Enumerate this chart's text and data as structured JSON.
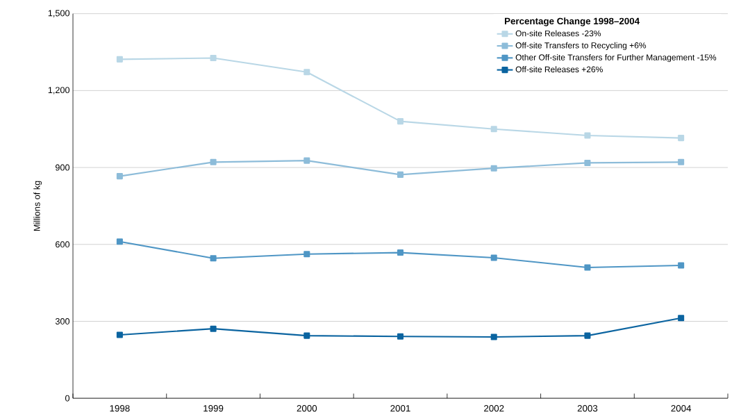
{
  "chart_data": {
    "type": "line",
    "ylabel": "Millions of kg",
    "legend_title": "Percentage Change 1998–2004",
    "categories": [
      "1998",
      "1999",
      "2000",
      "2001",
      "2002",
      "2003",
      "2004"
    ],
    "series": [
      {
        "name": "On-site Releases -23%",
        "color": "#b9d7e6",
        "values": [
          1322,
          1327,
          1272,
          1080,
          1050,
          1025,
          1015
        ]
      },
      {
        "name": "Off-site Transfers to Recycling +6%",
        "color": "#8dbcd9",
        "values": [
          866,
          921,
          927,
          872,
          897,
          918,
          921
        ]
      },
      {
        "name": "Other Off-site Transfers for Further Management -15%",
        "color": "#4f96c5",
        "values": [
          611,
          546,
          562,
          568,
          548,
          510,
          518
        ]
      },
      {
        "name": "Off-site Releases +26%",
        "color": "#0b64a0",
        "values": [
          247,
          271,
          244,
          241,
          239,
          244,
          313
        ]
      }
    ],
    "ylim": [
      0,
      1500
    ],
    "yticks": [
      {
        "value": 0,
        "label": "0"
      },
      {
        "value": 300,
        "label": "300"
      },
      {
        "value": 600,
        "label": "600"
      },
      {
        "value": 900,
        "label": "900"
      },
      {
        "value": 1200,
        "label": "1,200"
      },
      {
        "value": 1500,
        "label": "1,500"
      }
    ],
    "grid": "y",
    "legend": "top right",
    "marker": "square",
    "line_style": "solid"
  }
}
